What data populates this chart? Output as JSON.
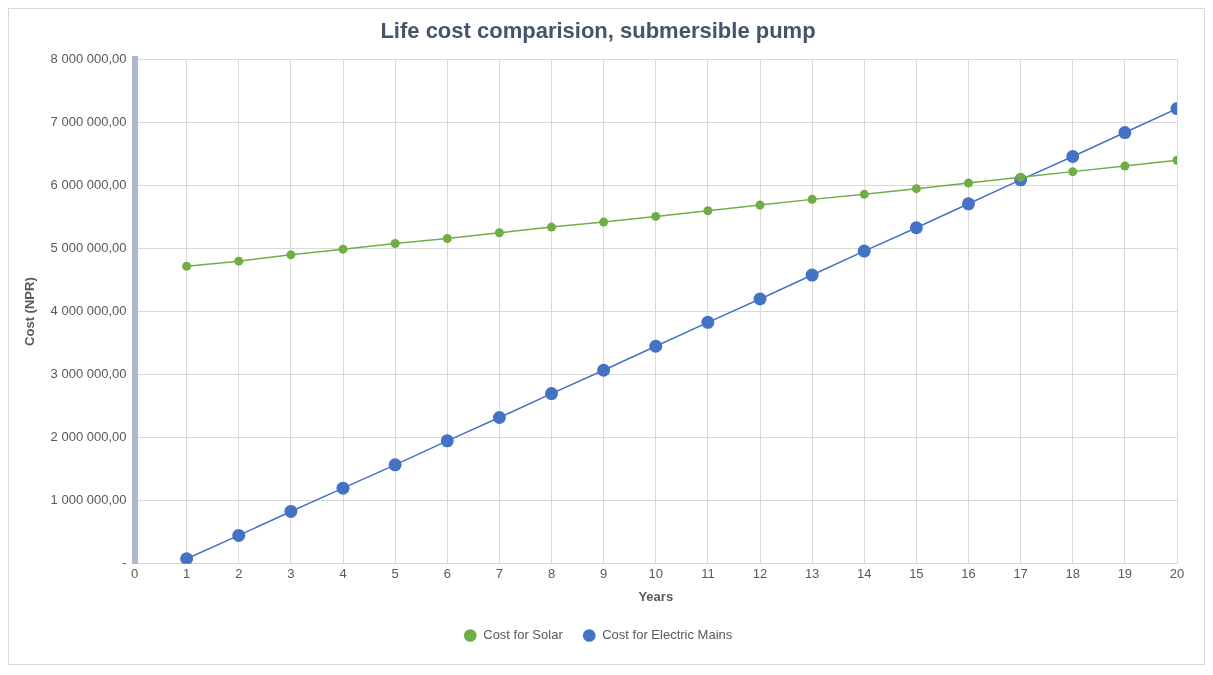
{
  "chart_data": {
    "type": "line",
    "title": "Life cost comparision, submersible pump",
    "xlabel": "Years",
    "ylabel": "Cost (NPR)",
    "x": [
      1,
      2,
      3,
      4,
      5,
      6,
      7,
      8,
      9,
      10,
      11,
      12,
      13,
      14,
      15,
      16,
      17,
      18,
      19,
      20
    ],
    "series": [
      {
        "name": "Cost for Solar",
        "color": "#70ad47",
        "values": [
          4720000,
          4800000,
          4900000,
          4990000,
          5080000,
          5160000,
          5250000,
          5340000,
          5420000,
          5510000,
          5600000,
          5690000,
          5780000,
          5860000,
          5950000,
          6040000,
          6130000,
          6220000,
          6310000,
          6400000
        ]
      },
      {
        "name": "Cost for Electric Mains",
        "color": "#4472c4",
        "values": [
          80000,
          450000,
          830000,
          1200000,
          1570000,
          1950000,
          2320000,
          2700000,
          3070000,
          3450000,
          3830000,
          4200000,
          4580000,
          4960000,
          5330000,
          5710000,
          6090000,
          6460000,
          6840000,
          7220000
        ]
      }
    ],
    "xlim": [
      0,
      20
    ],
    "xticks": [
      0,
      1,
      2,
      3,
      4,
      5,
      6,
      7,
      8,
      9,
      10,
      11,
      12,
      13,
      14,
      15,
      16,
      17,
      18,
      19,
      20
    ],
    "ylim": [
      0,
      8000000
    ],
    "yticks": [
      {
        "value": 0,
        "label": "-"
      },
      {
        "value": 1000000,
        "label": "1 000 000,00"
      },
      {
        "value": 2000000,
        "label": "2 000 000,00"
      },
      {
        "value": 3000000,
        "label": "3 000 000,00"
      },
      {
        "value": 4000000,
        "label": "4 000 000,00"
      },
      {
        "value": 5000000,
        "label": "5 000 000,00"
      },
      {
        "value": 6000000,
        "label": "6 000 000,00"
      },
      {
        "value": 7000000,
        "label": "7 000 000,00"
      },
      {
        "value": 8000000,
        "label": "8 000 000,00"
      }
    ],
    "grid": true,
    "legend": "bottom",
    "marker": "circle",
    "line_style": "solid"
  }
}
